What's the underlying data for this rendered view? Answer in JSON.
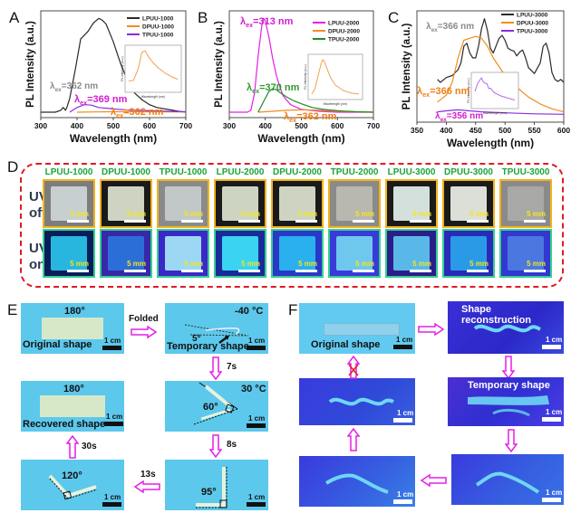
{
  "panels": {
    "A": "A",
    "B": "B",
    "C": "C",
    "D": "D",
    "E": "E",
    "F": "F"
  },
  "chart_data": [
    {
      "id": "A",
      "type": "line",
      "xlabel": "Wavelength (nm)",
      "ylabel": "PL Intensity (a.u.)",
      "xlim": [
        300,
        700
      ],
      "xticks": [
        "300",
        "400",
        "500",
        "600",
        "700"
      ],
      "legend": [
        "LPUU-1000",
        "DPUU-1000",
        "TPUU-1000"
      ],
      "legend_position": "top-right",
      "annotations": [
        {
          "text": "λex=362 nm",
          "sub": "ex",
          "base": "λ",
          "value": "=362 nm",
          "color": "#8a8a8a"
        },
        {
          "text": "λex=369 nm",
          "sub": "ex",
          "base": "λ",
          "value": "=369 nm",
          "color": "#d21ccf"
        },
        {
          "text": "λex=362 nm",
          "sub": "ex",
          "base": "λ",
          "value": "=362 nm",
          "color": "#f07d12"
        }
      ],
      "series": [
        {
          "name": "LPUU-1000",
          "color": "#2a2a2a",
          "x": [
            300,
            340,
            355,
            362,
            368,
            372,
            380,
            395,
            410,
            430,
            445,
            460,
            470,
            480,
            500,
            520,
            540,
            560,
            580,
            600,
            620,
            650,
            680,
            700
          ],
          "y": [
            0.0,
            0.0,
            0.02,
            0.05,
            0.02,
            0.05,
            0.15,
            0.45,
            0.78,
            0.86,
            0.95,
            1.0,
            0.98,
            0.94,
            0.75,
            0.52,
            0.33,
            0.2,
            0.13,
            0.08,
            0.05,
            0.03,
            0.01,
            0.0
          ]
        },
        {
          "name": "DPUU-1000",
          "color": "#f28c1e",
          "x": [
            400,
            450,
            500,
            550,
            600,
            650,
            700
          ],
          "y": [
            0.0,
            0.003,
            0.005,
            0.005,
            0.004,
            0.003,
            0.002
          ]
        },
        {
          "name": "TPUU-1000",
          "color": "#8a2be2",
          "x": [
            380,
            400,
            420,
            440,
            460,
            500,
            550,
            600,
            650,
            700
          ],
          "y": [
            0.0,
            0.05,
            0.08,
            0.075,
            0.05,
            0.035,
            0.02,
            0.015,
            0.01,
            0.005
          ]
        }
      ],
      "inset": {
        "series": "DPUU-1000",
        "xlabel": "Wavelength (nm)",
        "ylabel": "PL Intensity (a.u.)",
        "color": "#f4a04a",
        "x": [
          400,
          430,
          460,
          480,
          500,
          520,
          550,
          580,
          620,
          660,
          700
        ],
        "y": [
          0.2,
          0.22,
          0.55,
          0.95,
          1.0,
          0.85,
          0.68,
          0.55,
          0.42,
          0.32,
          0.25
        ]
      }
    },
    {
      "id": "B",
      "type": "line",
      "xlabel": "Wavelength (nm)",
      "ylabel": "PL Intensity (a.u.)",
      "xlim": [
        300,
        700
      ],
      "xticks": [
        "300",
        "400",
        "500",
        "600",
        "700"
      ],
      "legend": [
        "LPUU-2000",
        "DPUU-2000",
        "TPUU-2000"
      ],
      "legend_position": "top-right",
      "annotations": [
        {
          "base": "λ",
          "sub": "ex",
          "value": "=313 nm",
          "color": "#d21ccf"
        },
        {
          "base": "λ",
          "sub": "ex",
          "value": "=370 nm",
          "color": "#2f9a2f"
        },
        {
          "base": "λ",
          "sub": "ex",
          "value": "=362 nm",
          "color": "#f07d12"
        }
      ],
      "series": [
        {
          "name": "LPUU-2000",
          "color": "#e61ee6",
          "x": [
            300,
            350,
            360,
            370,
            380,
            390,
            395,
            400,
            410,
            420,
            430,
            440,
            450,
            470,
            500,
            550,
            600,
            700
          ],
          "y": [
            0.0,
            0.0,
            0.02,
            0.2,
            0.6,
            0.92,
            1.0,
            0.97,
            0.8,
            0.58,
            0.4,
            0.27,
            0.17,
            0.08,
            0.03,
            0.01,
            0.0,
            0.0
          ]
        },
        {
          "name": "DPUU-2000",
          "color": "#f28c1e",
          "x": [
            380,
            420,
            460,
            500,
            550,
            600,
            650,
            700
          ],
          "y": [
            0.0,
            0.01,
            0.02,
            0.025,
            0.02,
            0.01,
            0.005,
            0.0
          ]
        },
        {
          "name": "TPUU-2000",
          "color": "#1f8a1f",
          "x": [
            380,
            400,
            410,
            420,
            430,
            440,
            460,
            480,
            500,
            530,
            560,
            600,
            650,
            700
          ],
          "y": [
            0.0,
            0.15,
            0.22,
            0.25,
            0.24,
            0.21,
            0.16,
            0.12,
            0.09,
            0.05,
            0.03,
            0.015,
            0.005,
            0.0
          ]
        }
      ],
      "inset": {
        "series": "DPUU-2000",
        "xlabel": "Wavelength (nm)",
        "ylabel": "PL Intensity (a.u.)",
        "color": "#f4a04a",
        "x": [
          400,
          420,
          440,
          460,
          470,
          480,
          500,
          520,
          550,
          600,
          650,
          700
        ],
        "y": [
          0.05,
          0.2,
          0.55,
          0.9,
          1.0,
          0.95,
          0.72,
          0.5,
          0.3,
          0.15,
          0.08,
          0.05
        ]
      }
    },
    {
      "id": "C",
      "type": "line",
      "xlabel": "Wavelength (nm)",
      "ylabel": "PL Intensity (a.u.)",
      "xlim": [
        350,
        600
      ],
      "xticks": [
        "350",
        "400",
        "450",
        "500",
        "550",
        "600"
      ],
      "legend": [
        "LPUU-3000",
        "DPUU-3000",
        "TPUU-3000"
      ],
      "legend_position": "top-right",
      "annotations": [
        {
          "base": "λ",
          "sub": "ex",
          "value": "=366 nm",
          "color": "#8a8a8a"
        },
        {
          "base": "λ",
          "sub": "ex",
          "value": "=366 nm",
          "color": "#f07d12"
        },
        {
          "base": "λ",
          "sub": "ex",
          "value": "=356 nm",
          "color": "#d21ccf"
        }
      ],
      "series": [
        {
          "name": "LPUU-3000",
          "color": "#2a2a2a",
          "x": [
            385,
            390,
            400,
            410,
            420,
            425,
            430,
            435,
            440,
            445,
            450,
            455,
            460,
            465,
            470,
            475,
            480,
            490,
            495,
            500,
            505,
            510,
            515,
            520,
            525,
            530,
            535,
            540,
            550,
            560,
            565,
            570,
            575,
            580,
            585,
            590,
            595,
            600
          ],
          "y": [
            0.38,
            0.35,
            0.4,
            0.42,
            0.48,
            0.55,
            0.72,
            0.75,
            0.65,
            0.6,
            0.6,
            0.72,
            0.9,
            1.0,
            0.88,
            0.7,
            0.65,
            0.8,
            0.83,
            0.78,
            0.7,
            0.68,
            0.67,
            0.62,
            0.66,
            0.68,
            0.6,
            0.5,
            0.44,
            0.55,
            0.72,
            0.75,
            0.65,
            0.45,
            0.38,
            0.36,
            0.38,
            0.35
          ]
        },
        {
          "name": "DPUU-3000",
          "color": "#f28c1e",
          "x": [
            385,
            400,
            410,
            420,
            430,
            440,
            450,
            460,
            470,
            480,
            500,
            520,
            540,
            560,
            580,
            600
          ],
          "y": [
            0.15,
            0.22,
            0.35,
            0.6,
            0.78,
            0.8,
            0.82,
            0.8,
            0.72,
            0.6,
            0.42,
            0.3,
            0.2,
            0.13,
            0.08,
            0.05
          ]
        },
        {
          "name": "TPUU-3000",
          "color": "#8a2be2",
          "x": [
            385,
            400,
            420,
            440,
            460,
            500,
            550,
            600
          ],
          "y": [
            0.05,
            0.06,
            0.07,
            0.06,
            0.05,
            0.04,
            0.03,
            0.025
          ]
        }
      ],
      "inset": {
        "series": "TPUU-3000",
        "xlabel": "Wavelength (nm)",
        "ylabel": "PL Intensity (a.u.)",
        "color": "#b36ae8",
        "x": [
          385,
          400,
          410,
          420,
          430,
          440,
          450,
          460,
          470,
          480,
          490,
          500,
          510,
          520,
          530,
          540,
          550,
          560,
          580,
          600
        ],
        "y": [
          0.5,
          0.8,
          0.9,
          1.0,
          0.85,
          0.8,
          0.78,
          0.6,
          0.62,
          0.52,
          0.45,
          0.42,
          0.38,
          0.35,
          0.32,
          0.3,
          0.28,
          0.26,
          0.22,
          0.18
        ]
      }
    }
  ],
  "panel_d": {
    "row_labels": [
      [
        "UV",
        "off"
      ],
      [
        "UV",
        "on"
      ]
    ],
    "scale_label": "5 mm",
    "samples": [
      "LPUU-1000",
      "DPUU-1000",
      "TPUU-1000",
      "LPUU-2000",
      "DPUU-2000",
      "TPUU-2000",
      "LPUU-3000",
      "DPUU-3000",
      "TPUU-3000"
    ],
    "colors": {
      "frame": "#e01b24",
      "label": "#1aa53a",
      "off_border": "#f2b21c",
      "on_border": "#35d08e"
    }
  },
  "panel_e": {
    "original": {
      "angle": "180°",
      "caption": "Original shape",
      "scale": "1 cm"
    },
    "temporary": {
      "temp": "-40 °C",
      "angle": "5°",
      "caption": "Temporary shape",
      "scale": "1 cm"
    },
    "step1": {
      "temp": "30 °C",
      "angle": "60°",
      "scale": "1 cm"
    },
    "step2": {
      "angle": "95°",
      "scale": "1 cm"
    },
    "step3": {
      "angle": "120°",
      "scale": "1 cm"
    },
    "recovered": {
      "angle": "180°",
      "caption": "Recovered shape",
      "scale": "1 cm"
    },
    "arrows": {
      "folded": "Folded",
      "t1": "7s",
      "t2": "8s",
      "t3": "13s",
      "t4": "30s"
    }
  },
  "panel_f": {
    "original": {
      "caption": "Original shape",
      "scale": "1 cm"
    },
    "reconstruction": {
      "caption": "Shape reconstruction",
      "scale": "1 cm"
    },
    "temporary": {
      "caption": "Temporary shape",
      "scale": "1 cm"
    },
    "step_a": {
      "scale": "1 cm"
    },
    "step_b": {
      "scale": "1 cm"
    },
    "step_c": {
      "scale": "1 cm"
    }
  }
}
